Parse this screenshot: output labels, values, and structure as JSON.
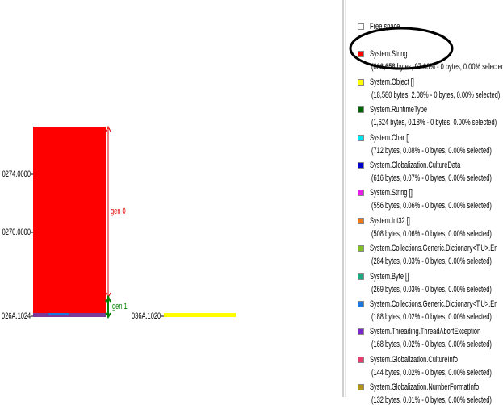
{
  "heap_view": {
    "address_labels": [
      "0274.0000",
      "0270.0000",
      "026A.1024"
    ],
    "second_address": "036A.1020",
    "generation_labels": [
      "gen 0",
      "gen 1"
    ]
  },
  "legend": {
    "entries": [
      {
        "name": "Free space",
        "color": "#ffffff",
        "detail": null
      },
      {
        "name": "System.String",
        "color": "#ff0000",
        "detail": "(866,658 bytes, 97.08% - 0 bytes, 0.00% selected)"
      },
      {
        "name": "System.Object []",
        "color": "#ffff00",
        "detail": "(18,580 bytes, 2.08% - 0 bytes, 0.00% selected)"
      },
      {
        "name": "System.RuntimeType",
        "color": "#006400",
        "detail": "(1,624 bytes, 0.18% - 0 bytes, 0.00% selected)"
      },
      {
        "name": "System.Char []",
        "color": "#00e5ee",
        "detail": "(712 bytes, 0.08% - 0 bytes, 0.00% selected)"
      },
      {
        "name": "System.Globalization.CultureData",
        "color": "#0000cd",
        "detail": "(616 bytes, 0.07% - 0 bytes, 0.00% selected)"
      },
      {
        "name": "System.String []",
        "color": "#e61ee6",
        "detail": "(556 bytes, 0.06% - 0 bytes, 0.00% selected)"
      },
      {
        "name": "System.Int32 []",
        "color": "#f07814",
        "detail": "(508 bytes, 0.06% - 0 bytes, 0.00% selected)"
      },
      {
        "name": "System.Collections.Generic.Dictionary<T,U>.En",
        "color": "#82be28",
        "detail": "(284 bytes, 0.03% - 0 bytes, 0.00% selected)"
      },
      {
        "name": "System.Byte []",
        "color": "#1eaa82",
        "detail": "(269 bytes, 0.03% - 0 bytes, 0.00% selected)"
      },
      {
        "name": "System.Collections.Generic.Dictionary<T,U>.En",
        "color": "#1e78dc",
        "detail": "(188 bytes, 0.02% - 0 bytes, 0.00% selected)"
      },
      {
        "name": "System.Threading.ThreadAbortException",
        "color": "#7828c8",
        "detail": "(168 bytes, 0.02% - 0 bytes, 0.00% selected)"
      },
      {
        "name": "System.Globalization.CultureInfo",
        "color": "#e63c6e",
        "detail": "(144 bytes, 0.02% - 0 bytes, 0.00% selected)"
      },
      {
        "name": "System.Globalization.NumberFormatInfo",
        "color": "#b4961e",
        "detail": "(132 bytes, 0.01% - 0 bytes, 0.00% selected)"
      }
    ]
  }
}
